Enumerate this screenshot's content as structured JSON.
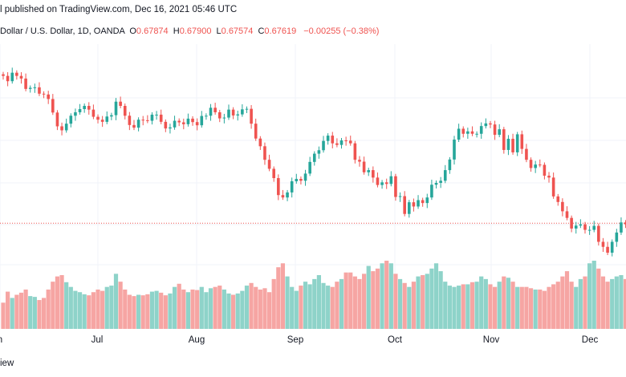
{
  "header": {
    "published_text": "l published on TradingView.com, Dec 16, 2021 05:46 UTC"
  },
  "legend": {
    "symbol_text": "Dollar / U.S. Dollar, 1D, OANDA",
    "o_label": "O",
    "o_value": "0.67874",
    "h_label": "H",
    "h_value": "0.67900",
    "l_label": "L",
    "l_value": "0.67574",
    "c_label": "C",
    "c_value": "0.67619",
    "change_text": "−0.00255 (−0.38%)"
  },
  "footer": {
    "text": "iew"
  },
  "colors": {
    "up": "#26a69a",
    "down": "#ef5350",
    "vol_up": "#8ed3c9",
    "vol_down": "#f6a5a3",
    "grid": "#f0f3fa",
    "last_price": "#ef5350"
  },
  "chart_data": {
    "type": "candlestick",
    "title": "",
    "x_tick_labels": [
      "n",
      "Jul",
      "Aug",
      "Sep",
      "Oct",
      "Nov",
      "Dec"
    ],
    "grid": true,
    "close": [
      0.7705,
      0.7685,
      0.7717,
      0.7705,
      0.7695,
      0.7656,
      0.766,
      0.7662,
      0.7638,
      0.7635,
      0.7618,
      0.7567,
      0.7515,
      0.75,
      0.7525,
      0.7555,
      0.7568,
      0.758,
      0.7592,
      0.7578,
      0.7551,
      0.754,
      0.7532,
      0.7552,
      0.7557,
      0.7608,
      0.7592,
      0.7555,
      0.752,
      0.751,
      0.754,
      0.7538,
      0.7536,
      0.7559,
      0.7559,
      0.7532,
      0.7507,
      0.7511,
      0.7536,
      0.753,
      0.7523,
      0.7544,
      0.7531,
      0.7519,
      0.7554,
      0.7555,
      0.7585,
      0.7568,
      0.7545,
      0.7548,
      0.7578,
      0.7556,
      0.756,
      0.7579,
      0.7581,
      0.7525,
      0.7469,
      0.744,
      0.7389,
      0.7355,
      0.732,
      0.7256,
      0.7247,
      0.7266,
      0.7308,
      0.7317,
      0.731,
      0.7337,
      0.7381,
      0.7412,
      0.7425,
      0.746,
      0.748,
      0.7451,
      0.7445,
      0.7462,
      0.7461,
      0.7451,
      0.7389,
      0.7382,
      0.7342,
      0.735,
      0.7322,
      0.7294,
      0.7304,
      0.7298,
      0.7327,
      0.7249,
      0.7252,
      0.7185,
      0.7229,
      0.7213,
      0.7237,
      0.7226,
      0.7247,
      0.7295,
      0.7302,
      0.731,
      0.735,
      0.739,
      0.7465,
      0.7506,
      0.7487,
      0.7496,
      0.7487,
      0.7487,
      0.7516,
      0.7526,
      0.7522,
      0.7483,
      0.7504,
      0.7426,
      0.7468,
      0.7417,
      0.7485,
      0.743,
      0.7389,
      0.7358,
      0.7371,
      0.737,
      0.7329,
      0.7322,
      0.7251,
      0.723,
      0.7195,
      0.717,
      0.713,
      0.7141,
      0.7146,
      0.7125,
      0.7125,
      0.714,
      0.708,
      0.7061,
      0.7039,
      0.708,
      0.7115,
      0.7153,
      0.7146,
      0.715
    ],
    "volume": [
      100,
      142,
      118,
      130,
      138,
      150,
      125,
      122,
      110,
      118,
      150,
      180,
      200,
      205,
      178,
      160,
      145,
      140,
      132,
      128,
      140,
      150,
      145,
      160,
      165,
      210,
      180,
      150,
      130,
      125,
      130,
      128,
      132,
      142,
      145,
      138,
      128,
      135,
      160,
      172,
      150,
      140,
      150,
      148,
      160,
      140,
      155,
      160,
      165,
      150,
      135,
      130,
      135,
      145,
      165,
      175,
      160,
      150,
      155,
      140,
      190,
      235,
      250,
      200,
      160,
      145,
      165,
      180,
      170,
      190,
      205,
      175,
      165,
      160,
      180,
      190,
      215,
      215,
      200,
      190,
      210,
      240,
      220,
      230,
      250,
      260,
      250,
      210,
      190,
      175,
      160,
      180,
      200,
      205,
      210,
      230,
      250,
      220,
      180,
      165,
      160,
      165,
      170,
      170,
      178,
      180,
      200,
      190,
      170,
      160,
      180,
      200,
      195,
      180,
      160,
      160,
      160,
      155,
      150,
      150,
      145,
      160,
      170,
      180,
      200,
      220,
      180,
      160,
      190,
      200,
      250,
      260,
      230,
      200,
      180,
      190,
      200,
      205,
      190,
      160
    ]
  }
}
